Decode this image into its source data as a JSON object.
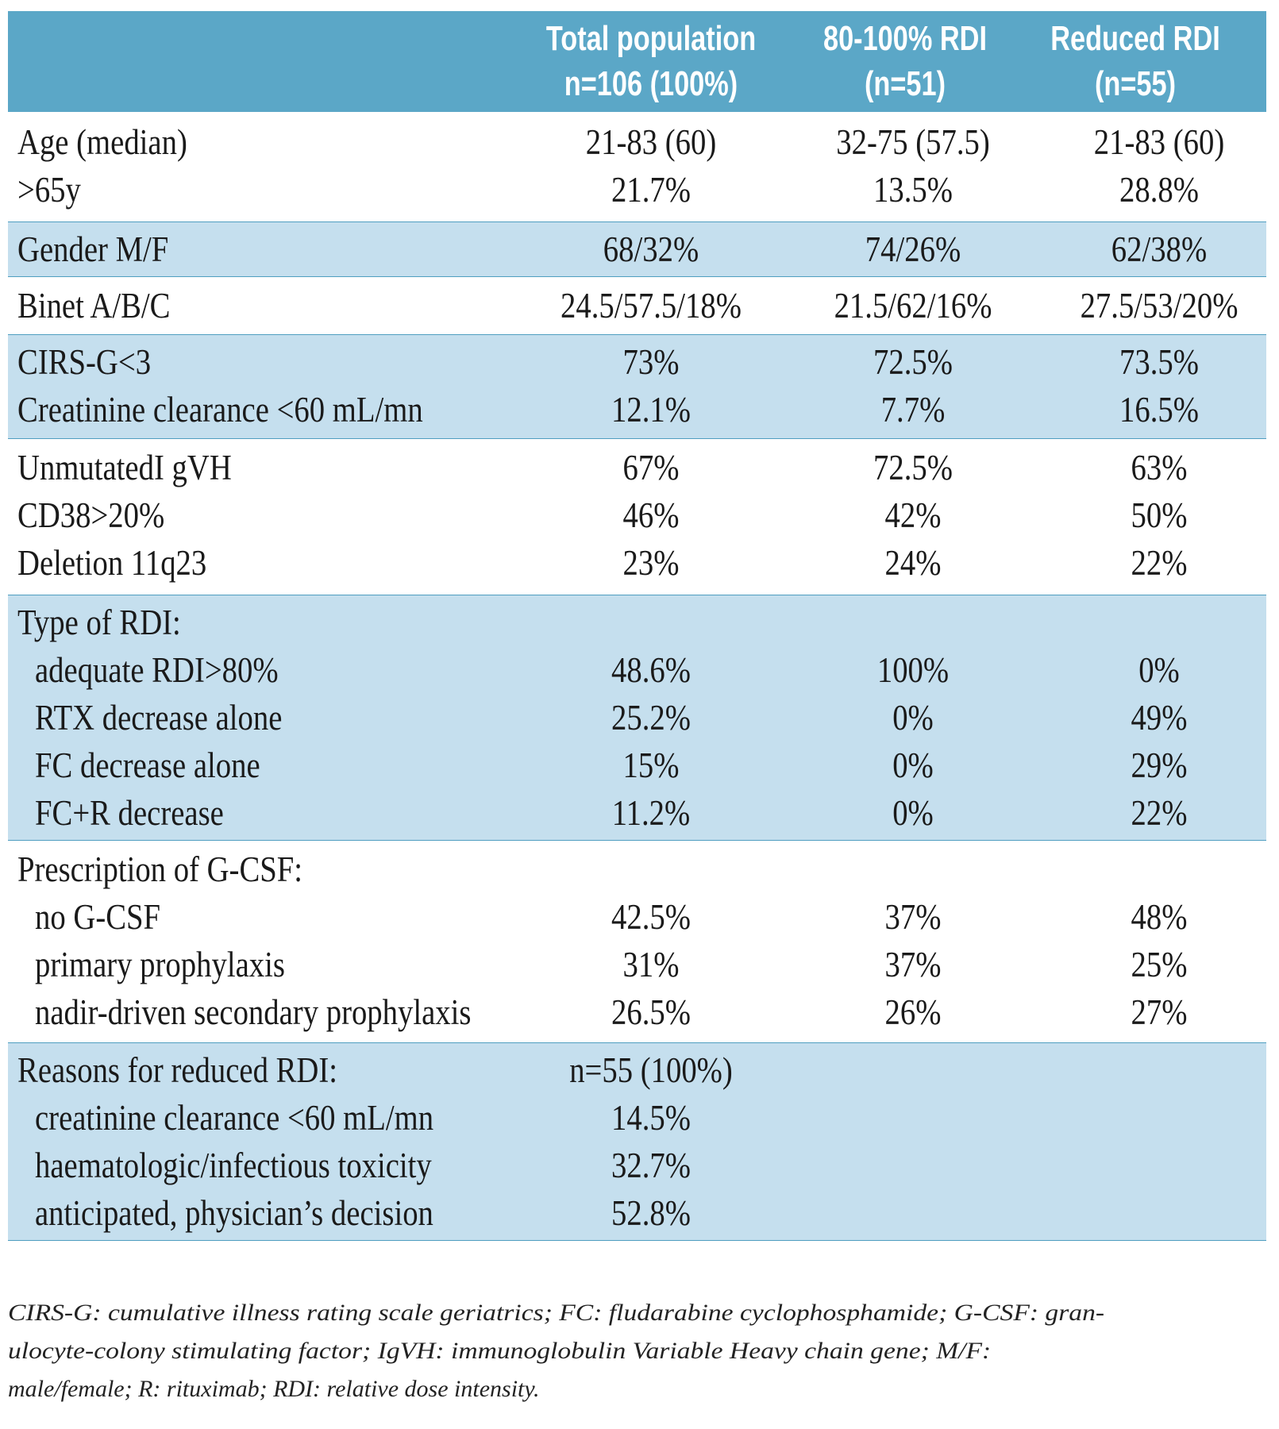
{
  "header": {
    "col1_line1": "Total population",
    "col1_line2": "n=106 (100%)",
    "col2_line1": "80-100% RDI",
    "col2_line2": "(n=51)",
    "col3_line1": "Reduced RDI",
    "col3_line2": "(n=55)"
  },
  "groups": [
    {
      "shaded": false,
      "rows": [
        {
          "label": "Age (median)",
          "indent": false,
          "v1": "21-83 (60)",
          "v2": "32-75 (57.5)",
          "v3": "21-83 (60)"
        },
        {
          "label": ">65y",
          "indent": false,
          "v1": "21.7%",
          "v2": "13.5%",
          "v3": "28.8%"
        }
      ]
    },
    {
      "shaded": true,
      "rows": [
        {
          "label": "Gender M/F",
          "indent": false,
          "v1": "68/32%",
          "v2": "74/26%",
          "v3": "62/38%"
        }
      ]
    },
    {
      "shaded": false,
      "rows": [
        {
          "label": "Binet A/B/C",
          "indent": false,
          "v1": "24.5/57.5/18%",
          "v2": "21.5/62/16%",
          "v3": "27.5/53/20%"
        }
      ]
    },
    {
      "shaded": true,
      "rows": [
        {
          "label": "CIRS-G<3",
          "indent": false,
          "v1": "73%",
          "v2": "72.5%",
          "v3": "73.5%"
        },
        {
          "label": "Creatinine clearance <60 mL/mn",
          "indent": false,
          "v1": "12.1%",
          "v2": "7.7%",
          "v3": "16.5%"
        }
      ]
    },
    {
      "shaded": false,
      "rows": [
        {
          "label": "UnmutatedI gVH",
          "indent": false,
          "v1": "67%",
          "v2": "72.5%",
          "v3": "63%"
        },
        {
          "label": "CD38>20%",
          "indent": false,
          "v1": "46%",
          "v2": "42%",
          "v3": "50%"
        },
        {
          "label": "Deletion 11q23",
          "indent": false,
          "v1": "23%",
          "v2": "24%",
          "v3": "22%"
        }
      ]
    },
    {
      "shaded": true,
      "rows": [
        {
          "label": "Type of RDI:",
          "indent": false,
          "v1": "",
          "v2": "",
          "v3": ""
        },
        {
          "label": "adequate RDI>80%",
          "indent": true,
          "v1": "48.6%",
          "v2": "100%",
          "v3": "0%"
        },
        {
          "label": "RTX decrease alone",
          "indent": true,
          "v1": "25.2%",
          "v2": "0%",
          "v3": "49%"
        },
        {
          "label": "FC decrease alone",
          "indent": true,
          "v1": "15%",
          "v2": "0%",
          "v3": "29%"
        },
        {
          "label": "FC+R decrease",
          "indent": true,
          "v1": "11.2%",
          "v2": "0%",
          "v3": "22%"
        }
      ]
    },
    {
      "shaded": false,
      "rows": [
        {
          "label": "Prescription of G-CSF:",
          "indent": false,
          "v1": "",
          "v2": "",
          "v3": ""
        },
        {
          "label": "no G-CSF",
          "indent": true,
          "v1": "42.5%",
          "v2": "37%",
          "v3": "48%"
        },
        {
          "label": "primary prophylaxis",
          "indent": true,
          "v1": "31%",
          "v2": "37%",
          "v3": "25%"
        },
        {
          "label": "nadir-driven secondary prophylaxis",
          "indent": true,
          "v1": "26.5%",
          "v2": "26%",
          "v3": "27%"
        }
      ]
    },
    {
      "shaded": true,
      "rows": [
        {
          "label": "Reasons for reduced RDI:",
          "indent": false,
          "v1": "n=55 (100%)",
          "v2": "",
          "v3": ""
        },
        {
          "label": "creatinine clearance <60 mL/mn",
          "indent": true,
          "v1": "14.5%",
          "v2": "",
          "v3": ""
        },
        {
          "label": "haematologic/infectious toxicity",
          "indent": true,
          "v1": "32.7%",
          "v2": "",
          "v3": ""
        },
        {
          "label": "anticipated, physician’s decision",
          "indent": true,
          "v1": "52.8%",
          "v2": "",
          "v3": ""
        }
      ]
    }
  ],
  "caption": {
    "line1": "CIRS-G: cumulative illness rating scale geriatrics; FC: fludarabine cyclophosphamide; G-CSF: gran-",
    "line2": "ulocyte-colony stimulating factor; IgVH: immunoglobulin Variable Heavy chain gene; M/F:",
    "line3": "male/female; R: rituximab; RDI: relative dose intensity."
  }
}
